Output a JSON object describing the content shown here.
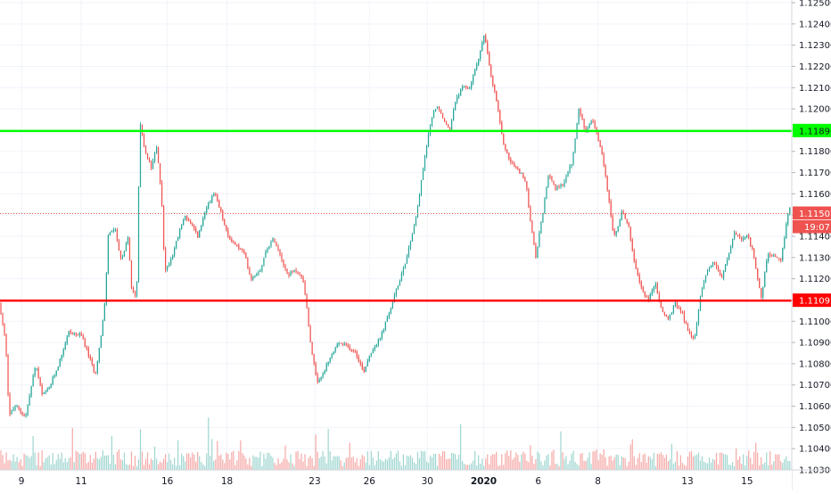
{
  "chart_data": {
    "type": "candlestick",
    "instrument_hint": "EUR/USD-like price series",
    "colors": {
      "up": "#26a69a",
      "down": "#ef5350",
      "support": "#ff0000",
      "resistance": "#00ff00",
      "current": "#ef5350",
      "volume_up": "#9fd6d0",
      "volume_down": "#f5a9a7",
      "grid": "#f0f3fa",
      "axis_text": "#131722"
    },
    "ylim": [
      1.103,
      1.125
    ],
    "y_ticks": [
      "1.12500",
      "1.12400",
      "1.12300",
      "1.12200",
      "1.12100",
      "1.12000",
      "1.11900",
      "1.11800",
      "1.11700",
      "1.11600",
      "1.11500",
      "1.11400",
      "1.11300",
      "1.11200",
      "1.11100",
      "1.11000",
      "1.10900",
      "1.10800",
      "1.10700",
      "1.10600",
      "1.10500",
      "1.10400",
      "1.10300"
    ],
    "x_ticks": [
      {
        "label": "9",
        "index": 0.13
      },
      {
        "label": "11",
        "index": 0.49
      },
      {
        "label": "16",
        "index": 1.01
      },
      {
        "label": "18",
        "index": 1.37
      },
      {
        "label": "23",
        "index": 1.9
      },
      {
        "label": "26",
        "index": 2.23
      },
      {
        "label": "30",
        "index": 2.58
      },
      {
        "label": "2020",
        "index": 2.92
      },
      {
        "label": "6",
        "index": 3.25
      },
      {
        "label": "8",
        "index": 3.61
      },
      {
        "label": "13",
        "index": 4.15
      },
      {
        "label": "15",
        "index": 4.51
      }
    ],
    "x_range": [
      0,
      4.78
    ],
    "key_path": [
      [
        0.0,
        1.11085
      ],
      [
        0.04,
        1.109
      ],
      [
        0.06,
        1.1056
      ],
      [
        0.1,
        1.106
      ],
      [
        0.16,
        1.1055
      ],
      [
        0.22,
        1.108
      ],
      [
        0.26,
        1.1065
      ],
      [
        0.3,
        1.1068
      ],
      [
        0.36,
        1.108
      ],
      [
        0.42,
        1.1095
      ],
      [
        0.5,
        1.1093
      ],
      [
        0.58,
        1.1075
      ],
      [
        0.62,
        1.1095
      ],
      [
        0.64,
        1.111
      ],
      [
        0.66,
        1.1142
      ],
      [
        0.7,
        1.1143
      ],
      [
        0.74,
        1.1128
      ],
      [
        0.78,
        1.114
      ],
      [
        0.8,
        1.1114
      ],
      [
        0.83,
        1.1112
      ],
      [
        0.85,
        1.1195
      ],
      [
        0.88,
        1.118
      ],
      [
        0.92,
        1.1172
      ],
      [
        0.95,
        1.1182
      ],
      [
        0.98,
        1.116
      ],
      [
        1.0,
        1.1123
      ],
      [
        1.04,
        1.113
      ],
      [
        1.08,
        1.114
      ],
      [
        1.12,
        1.115
      ],
      [
        1.16,
        1.1145
      ],
      [
        1.2,
        1.114
      ],
      [
        1.26,
        1.1155
      ],
      [
        1.3,
        1.116
      ],
      [
        1.34,
        1.1151
      ],
      [
        1.38,
        1.114
      ],
      [
        1.44,
        1.1135
      ],
      [
        1.48,
        1.1132
      ],
      [
        1.52,
        1.112
      ],
      [
        1.58,
        1.1125
      ],
      [
        1.62,
        1.1135
      ],
      [
        1.66,
        1.1139
      ],
      [
        1.7,
        1.1131
      ],
      [
        1.74,
        1.1122
      ],
      [
        1.8,
        1.1124
      ],
      [
        1.84,
        1.1118
      ],
      [
        1.88,
        1.109
      ],
      [
        1.92,
        1.107
      ],
      [
        1.96,
        1.1076
      ],
      [
        2.0,
        1.1083
      ],
      [
        2.05,
        1.109
      ],
      [
        2.1,
        1.1088
      ],
      [
        2.15,
        1.1086
      ],
      [
        2.2,
        1.1076
      ],
      [
        2.24,
        1.1085
      ],
      [
        2.3,
        1.1092
      ],
      [
        2.36,
        1.1105
      ],
      [
        2.42,
        1.112
      ],
      [
        2.46,
        1.113
      ],
      [
        2.52,
        1.115
      ],
      [
        2.56,
        1.1172
      ],
      [
        2.6,
        1.1192
      ],
      [
        2.64,
        1.1202
      ],
      [
        2.68,
        1.1195
      ],
      [
        2.72,
        1.119
      ],
      [
        2.76,
        1.1205
      ],
      [
        2.8,
        1.121
      ],
      [
        2.84,
        1.121
      ],
      [
        2.88,
        1.122
      ],
      [
        2.93,
        1.1235
      ],
      [
        2.97,
        1.1215
      ],
      [
        3.0,
        1.1205
      ],
      [
        3.04,
        1.1185
      ],
      [
        3.08,
        1.1176
      ],
      [
        3.12,
        1.1172
      ],
      [
        3.15,
        1.117
      ],
      [
        3.18,
        1.1165
      ],
      [
        3.22,
        1.114
      ],
      [
        3.24,
        1.113
      ],
      [
        3.28,
        1.115
      ],
      [
        3.32,
        1.117
      ],
      [
        3.36,
        1.1162
      ],
      [
        3.4,
        1.1164
      ],
      [
        3.46,
        1.1175
      ],
      [
        3.5,
        1.12
      ],
      [
        3.54,
        1.119
      ],
      [
        3.58,
        1.1195
      ],
      [
        3.62,
        1.1185
      ],
      [
        3.66,
        1.117
      ],
      [
        3.7,
        1.1145
      ],
      [
        3.72,
        1.114
      ],
      [
        3.76,
        1.1152
      ],
      [
        3.8,
        1.1145
      ],
      [
        3.84,
        1.1125
      ],
      [
        3.88,
        1.1115
      ],
      [
        3.92,
        1.111
      ],
      [
        3.96,
        1.1118
      ],
      [
        4.0,
        1.1105
      ],
      [
        4.04,
        1.1101
      ],
      [
        4.08,
        1.1108
      ],
      [
        4.12,
        1.1105
      ],
      [
        4.16,
        1.1095
      ],
      [
        4.2,
        1.1092
      ],
      [
        4.24,
        1.1115
      ],
      [
        4.28,
        1.1125
      ],
      [
        4.32,
        1.1128
      ],
      [
        4.36,
        1.112
      ],
      [
        4.4,
        1.113
      ],
      [
        4.44,
        1.1142
      ],
      [
        4.48,
        1.1138
      ],
      [
        4.52,
        1.114
      ],
      [
        4.56,
        1.113
      ],
      [
        4.6,
        1.111
      ],
      [
        4.64,
        1.1132
      ],
      [
        4.68,
        1.113
      ],
      [
        4.72,
        1.1128
      ],
      [
        4.76,
        1.115
      ],
      [
        4.8,
        1.116
      ],
      [
        4.84,
        1.1155
      ],
      [
        4.88,
        1.1156
      ],
      [
        4.92,
        1.11507
      ]
    ],
    "horizontal_lines": [
      {
        "name": "resistance",
        "value": 1.11896,
        "label": "1.11896"
      },
      {
        "name": "support",
        "value": 1.11097,
        "label": "1.11097"
      },
      {
        "name": "current",
        "value": 1.11507,
        "label": "1.11507",
        "sublabel": "19:07"
      }
    ]
  }
}
